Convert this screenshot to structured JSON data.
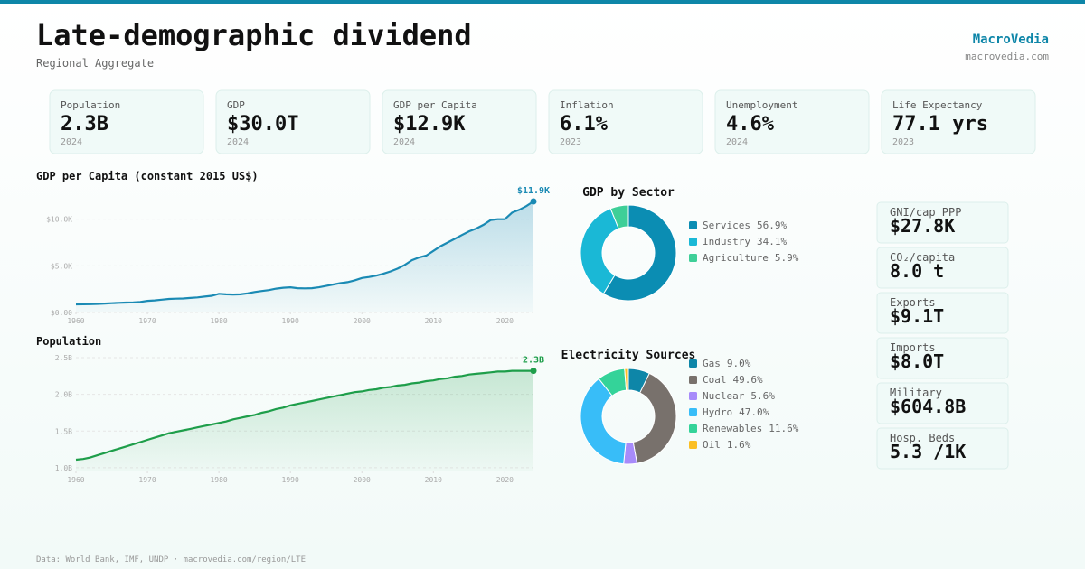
{
  "header": {
    "title": "Late-demographic dividend",
    "subtitle": "Regional Aggregate",
    "brand": "MacroVedia",
    "site": "macrovedia.com"
  },
  "kpis": [
    {
      "label": "Population",
      "value": "2.3B",
      "year": 2024
    },
    {
      "label": "GDP",
      "value": "$30.0T",
      "year": 2024
    },
    {
      "label": "GDP per Capita",
      "value": "$12.9K",
      "year": 2024
    },
    {
      "label": "Inflation",
      "value": "6.1%",
      "year": 2023
    },
    {
      "label": "Unemployment",
      "value": "4.6%",
      "year": 2024
    },
    {
      "label": "Life Expectancy",
      "value": "77.1 yrs",
      "year": 2023
    }
  ],
  "chart_data": [
    {
      "type": "line",
      "title": "GDP per Capita (constant 2015 US$)",
      "color": "#1a8ab4",
      "x": [
        1960,
        1961,
        1962,
        1963,
        1964,
        1965,
        1966,
        1967,
        1968,
        1969,
        1970,
        1971,
        1972,
        1973,
        1974,
        1975,
        1976,
        1977,
        1978,
        1979,
        1980,
        1981,
        1982,
        1983,
        1984,
        1985,
        1986,
        1987,
        1988,
        1989,
        1990,
        1991,
        1992,
        1993,
        1994,
        1995,
        1996,
        1997,
        1998,
        1999,
        2000,
        2001,
        2002,
        2003,
        2004,
        2005,
        2006,
        2007,
        2008,
        2009,
        2010,
        2011,
        2012,
        2013,
        2014,
        2015,
        2016,
        2017,
        2018,
        2019,
        2020,
        2021,
        2022,
        2023,
        2024
      ],
      "values": [
        870,
        880,
        890,
        920,
        960,
        1000,
        1040,
        1060,
        1080,
        1130,
        1250,
        1300,
        1370,
        1450,
        1480,
        1500,
        1560,
        1620,
        1700,
        1790,
        2000,
        1950,
        1930,
        1950,
        2050,
        2200,
        2300,
        2400,
        2550,
        2650,
        2700,
        2600,
        2580,
        2600,
        2700,
        2850,
        3000,
        3150,
        3250,
        3450,
        3700,
        3800,
        3950,
        4150,
        4400,
        4700,
        5100,
        5600,
        5900,
        6100,
        6600,
        7100,
        7500,
        7900,
        8300,
        8700,
        9000,
        9400,
        9900,
        10000,
        10000,
        10700,
        11000,
        11400,
        11900
      ],
      "xlim": [
        1960,
        2024
      ],
      "xticks": [
        1960,
        1970,
        1980,
        1990,
        2000,
        2010,
        2020
      ],
      "ylim": [
        0,
        12000
      ],
      "yticks": [
        {
          "value": 0,
          "label": "$0.00"
        },
        {
          "value": 5000,
          "label": "$5.0K"
        },
        {
          "value": 10000,
          "label": "$10.0K"
        }
      ],
      "grid": true,
      "annotations": [
        {
          "x": 2024,
          "value": 11900,
          "label": "$11.9K"
        }
      ]
    },
    {
      "type": "line",
      "title": "Population",
      "color": "#1e9e4a",
      "x": [
        1960,
        1961,
        1962,
        1963,
        1964,
        1965,
        1966,
        1967,
        1968,
        1969,
        1970,
        1971,
        1972,
        1973,
        1974,
        1975,
        1976,
        1977,
        1978,
        1979,
        1980,
        1981,
        1982,
        1983,
        1984,
        1985,
        1986,
        1987,
        1988,
        1989,
        1990,
        1991,
        1992,
        1993,
        1994,
        1995,
        1996,
        1997,
        1998,
        1999,
        2000,
        2001,
        2002,
        2003,
        2004,
        2005,
        2006,
        2007,
        2008,
        2009,
        2010,
        2011,
        2012,
        2013,
        2014,
        2015,
        2016,
        2017,
        2018,
        2019,
        2020,
        2021,
        2022,
        2023,
        2024
      ],
      "values": [
        1.11,
        1.12,
        1.14,
        1.17,
        1.2,
        1.23,
        1.26,
        1.29,
        1.32,
        1.35,
        1.38,
        1.41,
        1.44,
        1.47,
        1.49,
        1.51,
        1.53,
        1.55,
        1.57,
        1.59,
        1.61,
        1.63,
        1.66,
        1.68,
        1.7,
        1.72,
        1.75,
        1.77,
        1.8,
        1.82,
        1.85,
        1.87,
        1.89,
        1.91,
        1.93,
        1.95,
        1.97,
        1.99,
        2.01,
        2.03,
        2.04,
        2.06,
        2.07,
        2.09,
        2.1,
        2.12,
        2.13,
        2.15,
        2.16,
        2.18,
        2.19,
        2.21,
        2.22,
        2.24,
        2.25,
        2.27,
        2.28,
        2.29,
        2.3,
        2.31,
        2.31,
        2.32,
        2.32,
        2.32,
        2.32
      ],
      "xlim": [
        1960,
        2024
      ],
      "xticks": [
        1960,
        1970,
        1980,
        1990,
        2000,
        2010,
        2020
      ],
      "ylim": [
        0.95,
        2.5
      ],
      "yticks": [
        {
          "value": 1,
          "label": "1.0B"
        },
        {
          "value": 1.5,
          "label": "1.5B"
        },
        {
          "value": 2,
          "label": "2.0B"
        },
        {
          "value": 2.5,
          "label": "2.5B"
        }
      ],
      "grid": true,
      "annotations": [
        {
          "x": 2024,
          "value": 2.32,
          "label": "2.3B"
        }
      ]
    },
    {
      "type": "donut",
      "title": "GDP by Sector",
      "categories": [
        "Services",
        "Industry",
        "Agriculture"
      ],
      "values": [
        56.9,
        34.1,
        5.9
      ],
      "value_labels": [
        "56.9%",
        "34.1%",
        "5.9%"
      ],
      "colors": [
        "#0b8db3",
        "#1ab8d6",
        "#3ecf98"
      ]
    },
    {
      "type": "donut",
      "title": "Electricity Sources",
      "categories": [
        "Gas",
        "Coal",
        "Nuclear",
        "Hydro",
        "Renewables",
        "Oil"
      ],
      "values": [
        9.0,
        49.6,
        5.6,
        47.0,
        11.6,
        1.6
      ],
      "value_labels": [
        "9.0%",
        "49.6%",
        "5.6%",
        "47.0%",
        "11.6%",
        "1.6%"
      ],
      "colors": [
        "#0e86a8",
        "#78716c",
        "#a78bfa",
        "#38bdf8",
        "#34d399",
        "#fbbf24"
      ]
    }
  ],
  "side_stats": [
    {
      "label": "GNI/cap PPP",
      "value": "$27.8K"
    },
    {
      "label": "CO₂/capita",
      "value": "8.0 t"
    },
    {
      "label": "Exports",
      "value": "$9.1T"
    },
    {
      "label": "Imports",
      "value": "$8.0T"
    },
    {
      "label": "Military",
      "value": "$604.8B"
    },
    {
      "label": "Hosp. Beds",
      "value": "5.3 /1K"
    }
  ],
  "footer": "Data: World Bank, IMF, UNDP · macrovedia.com/region/LTE"
}
